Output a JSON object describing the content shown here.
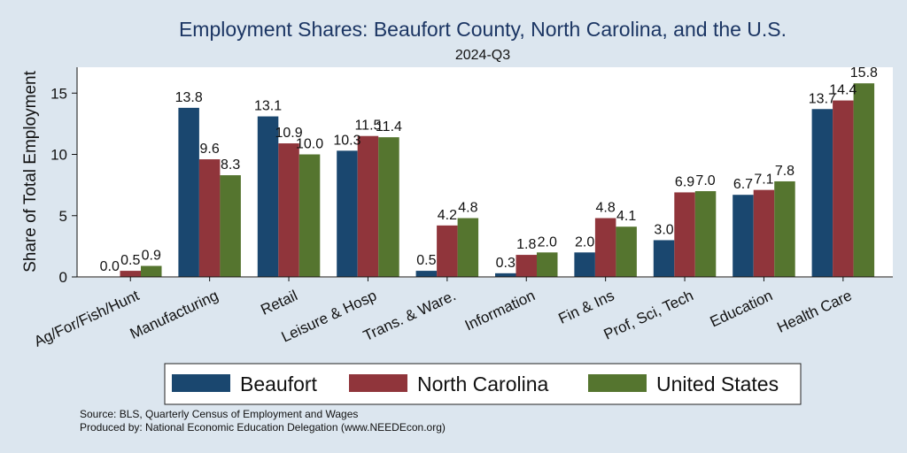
{
  "chart_data": {
    "type": "bar",
    "title": "Employment Shares: Beaufort County, North Carolina, and the U.S.",
    "subtitle": "2024-Q3",
    "ylabel": "Share of Total Employment",
    "xlabel": "",
    "ylim": [
      0,
      17
    ],
    "yticks": [
      0,
      5,
      10,
      15
    ],
    "grid": false,
    "legend_position": "bottom",
    "categories": [
      "Ag/For/Fish/Hunt",
      "Manufacturing",
      "Retail",
      "Leisure & Hosp",
      "Trans. & Ware.",
      "Information",
      "Fin & Ins",
      "Prof, Sci, Tech",
      "Education",
      "Health Care"
    ],
    "series": [
      {
        "name": "Beaufort",
        "color": "#1a476f",
        "values": [
          0.0,
          13.8,
          13.1,
          10.3,
          0.5,
          0.3,
          2.0,
          3.0,
          6.7,
          13.7
        ]
      },
      {
        "name": "North Carolina",
        "color": "#90353b",
        "values": [
          0.5,
          9.6,
          10.9,
          11.5,
          4.2,
          1.8,
          4.8,
          6.9,
          7.1,
          14.4
        ]
      },
      {
        "name": "United States",
        "color": "#55752f",
        "values": [
          0.9,
          8.3,
          10.0,
          11.4,
          4.8,
          2.0,
          4.1,
          7.0,
          7.8,
          15.8
        ]
      }
    ]
  },
  "footer": {
    "source": "Source: BLS, Quarterly Census of Employment and Wages",
    "produced_by": "Produced by: National Economic Education Delegation (www.NEEDEcon.org)"
  }
}
